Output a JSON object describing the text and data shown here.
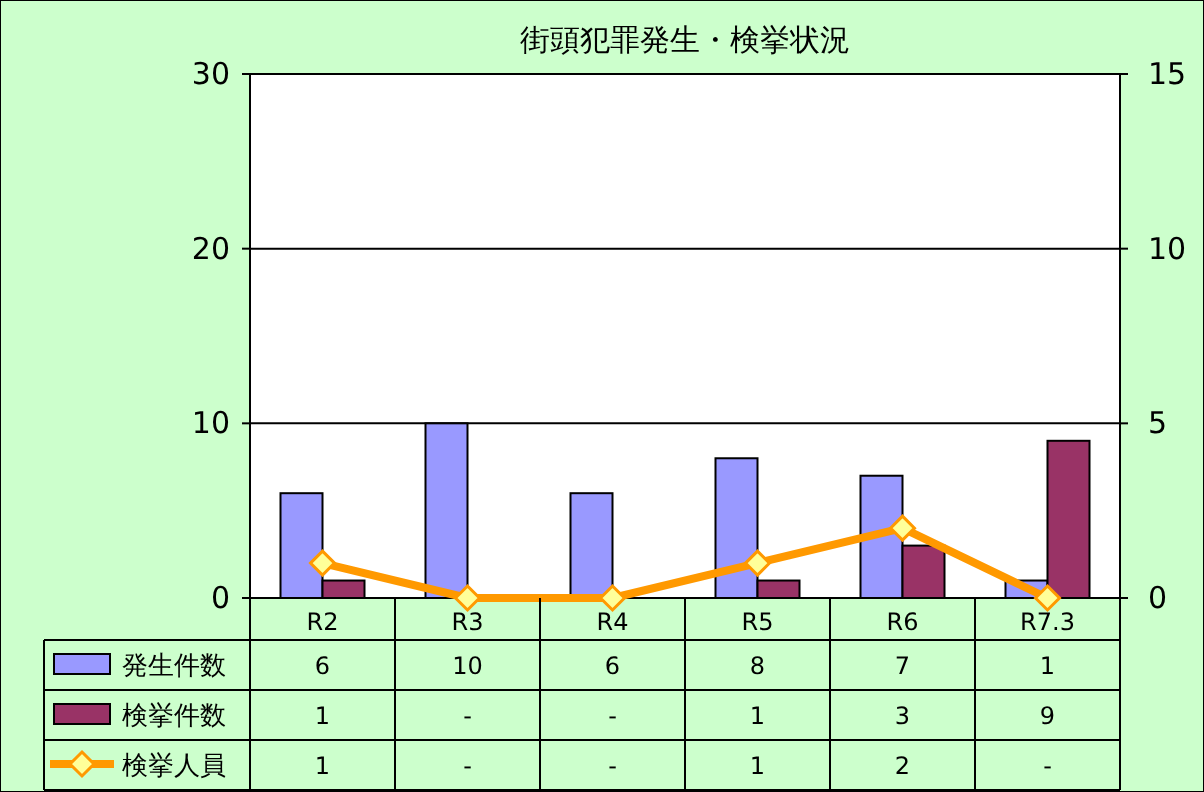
{
  "chart_data": {
    "type": "bar",
    "title": "街頭犯罪発生・検挙状況",
    "categories": [
      "R2",
      "R3",
      "R4",
      "R5",
      "R6",
      "R7.3"
    ],
    "series": [
      {
        "name": "発生件数",
        "color": "#9999ff",
        "values": [
          6,
          10,
          6,
          8,
          7,
          1
        ],
        "value_labels": [
          "6",
          "10",
          "6",
          "8",
          "7",
          "1"
        ]
      },
      {
        "name": "検挙件数",
        "color": "#993366",
        "values": [
          1,
          0,
          0,
          1,
          3,
          9
        ],
        "value_labels": [
          "1",
          "-",
          "-",
          "1",
          "3",
          "9"
        ]
      },
      {
        "name": "検挙人員",
        "type": "line",
        "axis": "y2",
        "color": "#ff9900",
        "marker": "diamond",
        "values": [
          1,
          0,
          0,
          1,
          2,
          0
        ],
        "value_labels": [
          "1",
          "-",
          "-",
          "1",
          "2",
          "-"
        ]
      }
    ],
    "ylim": [
      0,
      30
    ],
    "yticks": [
      0,
      10,
      20,
      30
    ],
    "y2lim": [
      0,
      15
    ],
    "y2ticks": [
      0,
      5,
      10,
      15
    ],
    "grid": "y",
    "legend": "bottom"
  }
}
